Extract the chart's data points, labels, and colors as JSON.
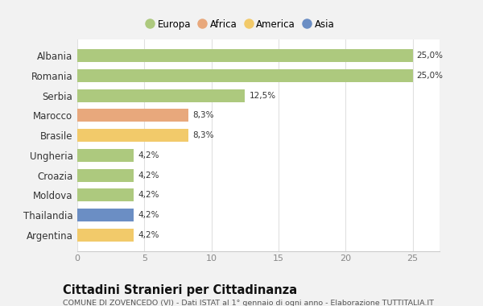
{
  "categories": [
    "Albania",
    "Romania",
    "Serbia",
    "Marocco",
    "Brasile",
    "Ungheria",
    "Croazia",
    "Moldova",
    "Thailandia",
    "Argentina"
  ],
  "values": [
    25.0,
    25.0,
    12.5,
    8.3,
    8.3,
    4.2,
    4.2,
    4.2,
    4.2,
    4.2
  ],
  "labels": [
    "25,0%",
    "25,0%",
    "12,5%",
    "8,3%",
    "8,3%",
    "4,2%",
    "4,2%",
    "4,2%",
    "4,2%",
    "4,2%"
  ],
  "colors": [
    "#adc97e",
    "#adc97e",
    "#adc97e",
    "#e8a87c",
    "#f2ca6a",
    "#adc97e",
    "#adc97e",
    "#adc97e",
    "#6b8ec4",
    "#f2ca6a"
  ],
  "legend": [
    {
      "label": "Europa",
      "color": "#adc97e"
    },
    {
      "label": "Africa",
      "color": "#e8a87c"
    },
    {
      "label": "America",
      "color": "#f2ca6a"
    },
    {
      "label": "Asia",
      "color": "#6b8ec4"
    }
  ],
  "xlim": [
    0,
    27
  ],
  "xticks": [
    0,
    5,
    10,
    15,
    20,
    25
  ],
  "title": "Cittadini Stranieri per Cittadinanza",
  "subtitle": "COMUNE DI ZOVENCEDO (VI) - Dati ISTAT al 1° gennaio di ogni anno - Elaborazione TUTTITALIA.IT",
  "background_color": "#f2f2f2",
  "plot_background": "#ffffff",
  "bar_height": 0.65,
  "label_fontsize": 7.5,
  "ytick_fontsize": 8.5,
  "xtick_fontsize": 8,
  "title_fontsize": 10.5,
  "subtitle_fontsize": 6.8
}
